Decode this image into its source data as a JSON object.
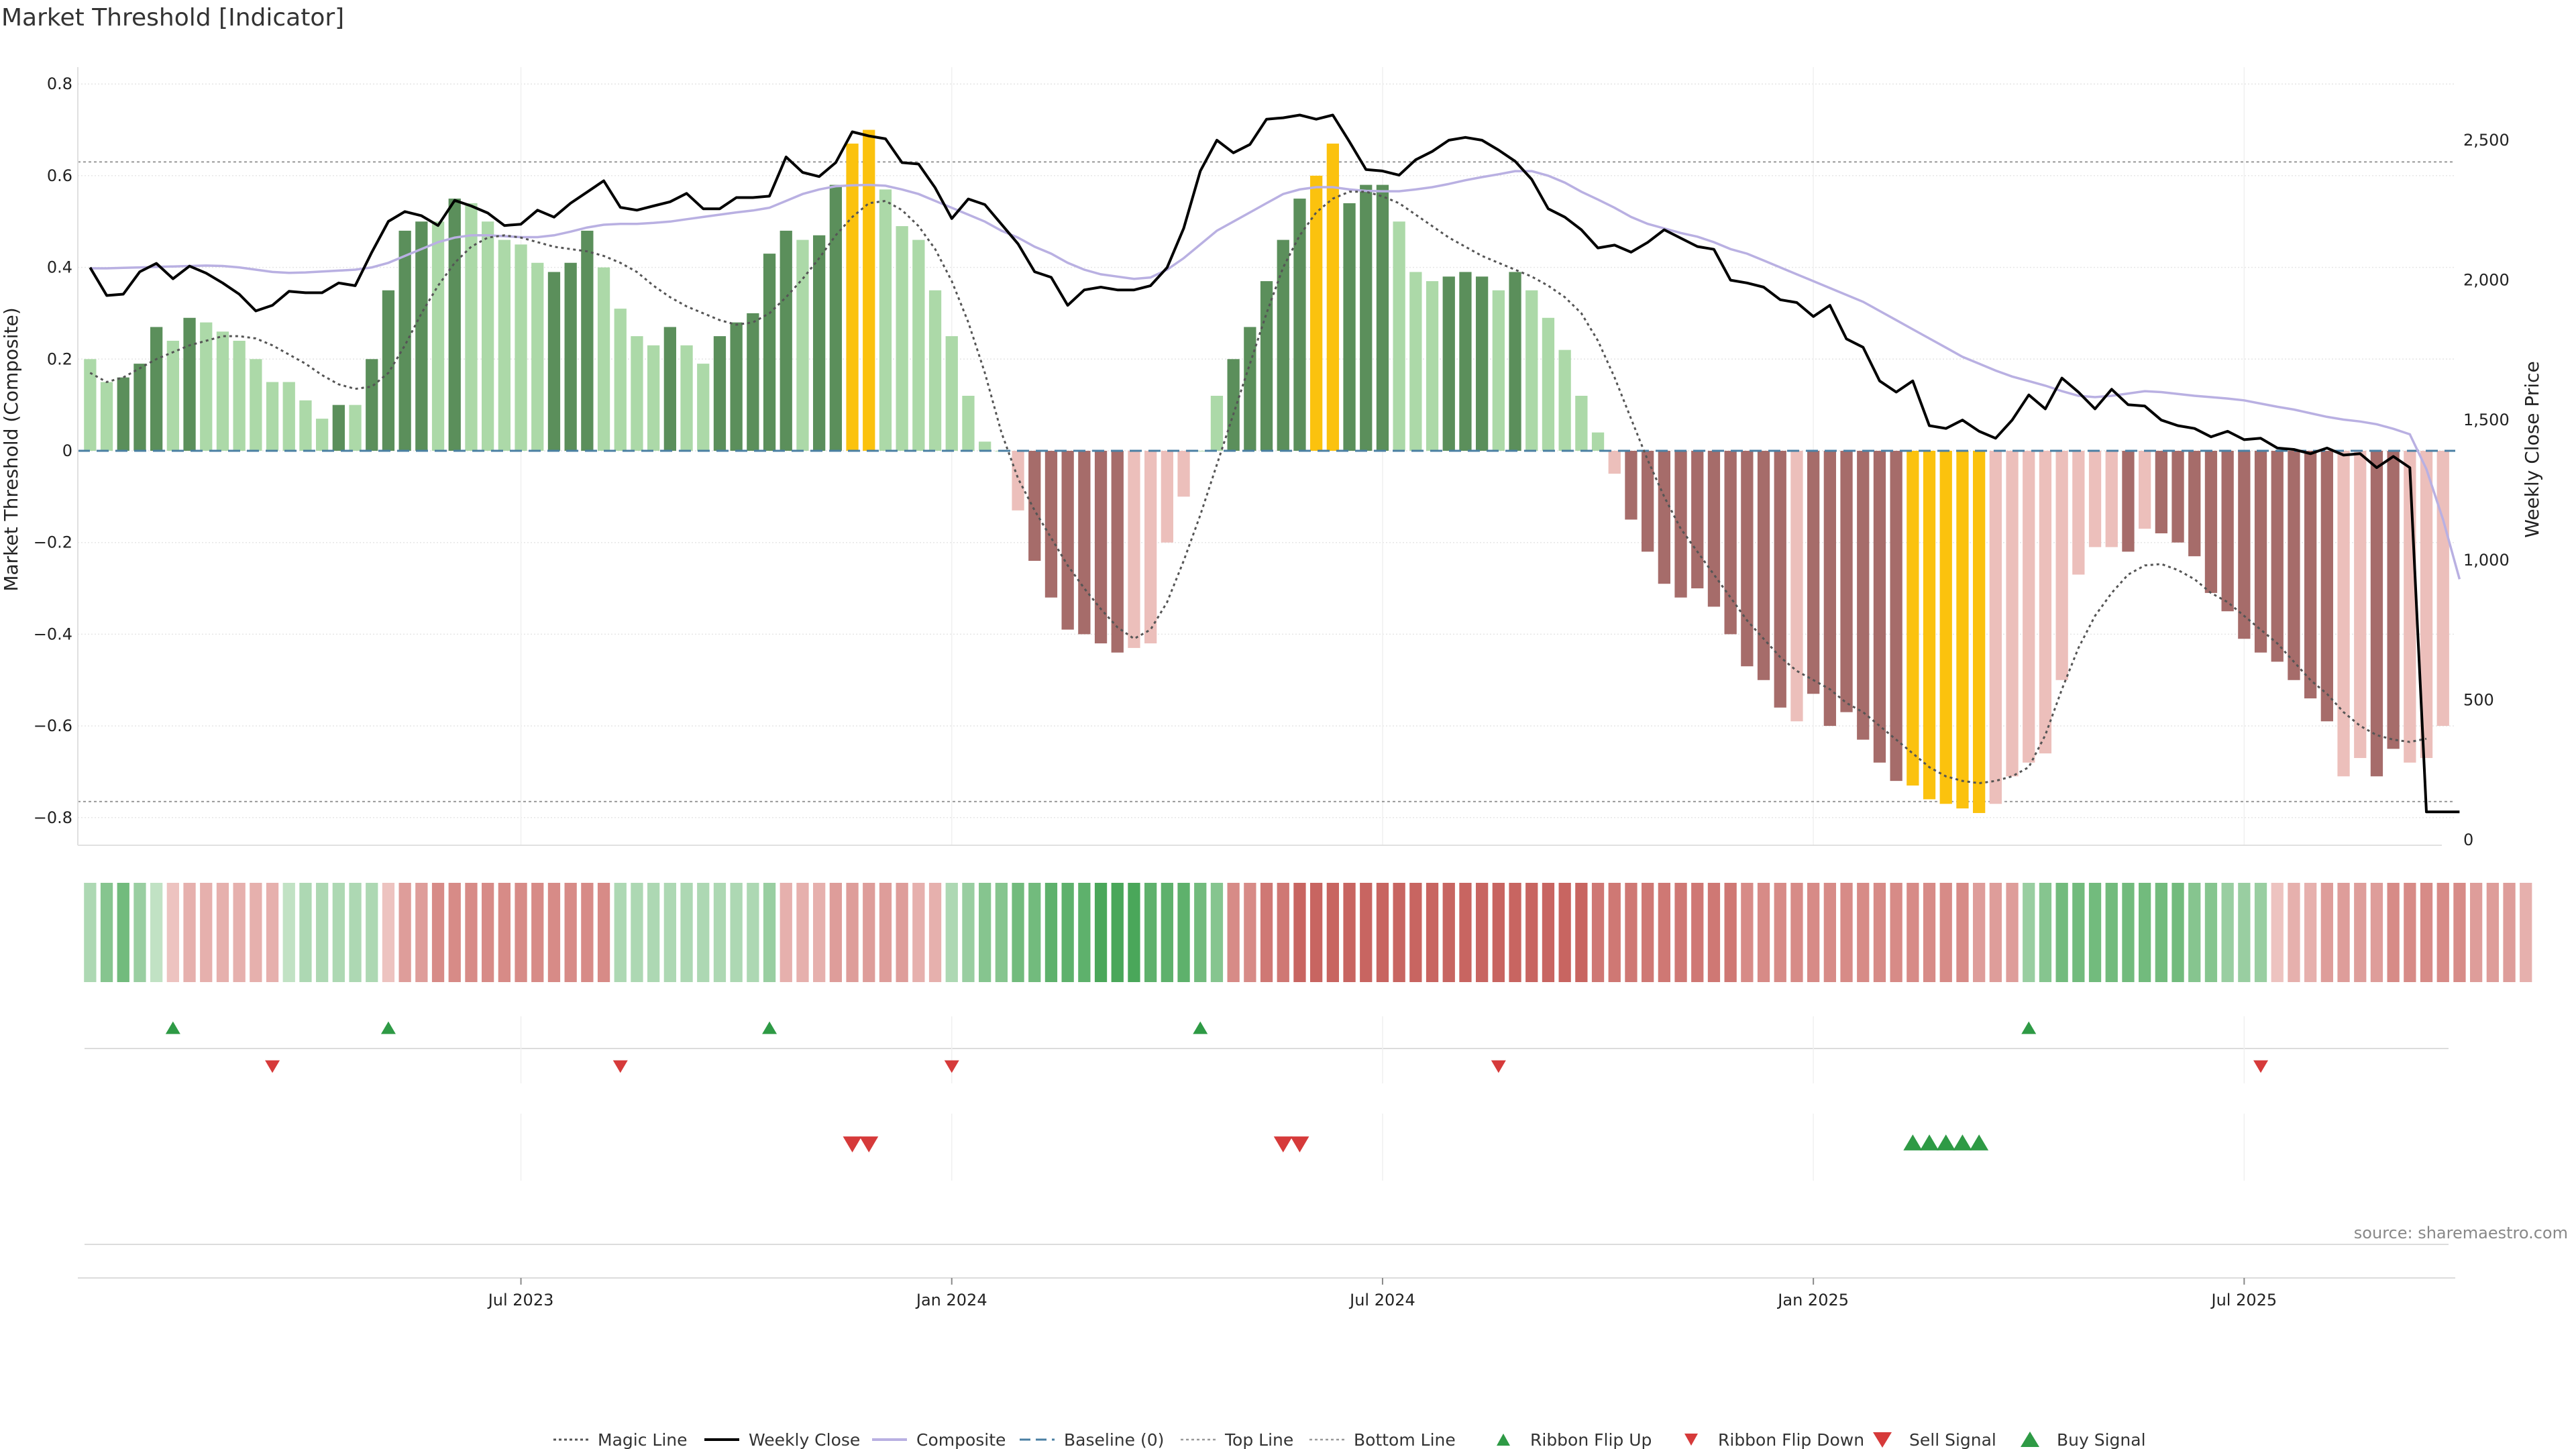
{
  "title": "Market Threshold [Indicator]",
  "source": "source: sharemaestro.com",
  "colors": {
    "bar_strong_up": "#5b8f5b",
    "bar_weak_up": "#acd9a8",
    "bar_strong_down": "#a66c6a",
    "bar_weak_down": "#ecbfbb",
    "bar_extreme": "#fbc20e",
    "weekly_close": "#000000",
    "composite": "#b9b0e2",
    "magic_line": "#555555",
    "baseline": "#4a7fa3",
    "threshold_line": "#999999",
    "signal_up": "#2e9a45",
    "signal_down": "#d63a3a"
  },
  "chart_data": {
    "type": "bar",
    "ylabel_left": "Market Threshold (Composite)",
    "ylabel_right": "Weekly Close Price",
    "ylim_left": [
      -0.85,
      0.85
    ],
    "ylim_right": [
      0,
      2650
    ],
    "yticks_left": [
      "0.8",
      "0.6",
      "0.4",
      "0.2",
      "0",
      "−0.2",
      "−0.4",
      "−0.6",
      "−0.8"
    ],
    "yticks_right": [
      "2,500",
      "2,000",
      "1,500",
      "1,000",
      "500",
      "0"
    ],
    "xticks": [
      "Jul 2023",
      "Jan 2024",
      "Jul 2024",
      "Jan 2025",
      "Jul 2025"
    ],
    "xtick_week_index": [
      26.5,
      52.5,
      78.5,
      104.5,
      130.5
    ],
    "week_count": 144,
    "top_line": 0.63,
    "bottom_line": -0.765,
    "threshold_values": [
      0.2,
      0.15,
      0.16,
      0.19,
      0.27,
      0.24,
      0.29,
      0.28,
      0.26,
      0.24,
      0.2,
      0.15,
      0.15,
      0.11,
      0.07,
      0.1,
      0.1,
      0.2,
      0.35,
      0.48,
      0.5,
      0.5,
      0.55,
      0.54,
      0.5,
      0.46,
      0.45,
      0.41,
      0.39,
      0.41,
      0.48,
      0.4,
      0.31,
      0.25,
      0.23,
      0.27,
      0.23,
      0.19,
      0.25,
      0.28,
      0.3,
      0.43,
      0.48,
      0.46,
      0.47,
      0.58,
      0.67,
      0.7,
      0.57,
      0.49,
      0.46,
      0.35,
      0.25,
      0.12,
      0.02,
      0,
      -0.13,
      -0.24,
      -0.32,
      -0.39,
      -0.4,
      -0.42,
      -0.44,
      -0.43,
      -0.42,
      -0.2,
      -0.1,
      0,
      0.12,
      0.2,
      0.27,
      0.37,
      0.46,
      0.55,
      0.6,
      0.67,
      0.54,
      0.58,
      0.58,
      0.5,
      0.39,
      0.37,
      0.38,
      0.39,
      0.38,
      0.35,
      0.39,
      0.35,
      0.29,
      0.22,
      0.12,
      0.04,
      -0.05,
      -0.15,
      -0.22,
      -0.29,
      -0.32,
      -0.3,
      -0.34,
      -0.4,
      -0.47,
      -0.5,
      -0.56,
      -0.59,
      -0.53,
      -0.6,
      -0.57,
      -0.63,
      -0.68,
      -0.72,
      -0.73,
      -0.76,
      -0.77,
      -0.78,
      -0.79,
      -0.77,
      -0.71,
      -0.68,
      -0.66,
      -0.5,
      -0.27,
      -0.21,
      -0.21,
      -0.22,
      -0.17,
      -0.18,
      -0.2,
      -0.23,
      -0.31,
      -0.35,
      -0.41,
      -0.44,
      -0.46,
      -0.5,
      -0.54,
      -0.59,
      -0.71,
      -0.67,
      -0.71,
      -0.65,
      -0.68,
      -0.67,
      -0.6
    ],
    "bar_classes": [
      "w",
      "w",
      "s",
      "s",
      "s",
      "w",
      "s",
      "w",
      "w",
      "w",
      "w",
      "w",
      "w",
      "w",
      "w",
      "s",
      "w",
      "s",
      "s",
      "s",
      "s",
      "w",
      "s",
      "w",
      "w",
      "w",
      "w",
      "w",
      "s",
      "s",
      "s",
      "w",
      "w",
      "w",
      "w",
      "s",
      "w",
      "w",
      "s",
      "s",
      "s",
      "s",
      "s",
      "w",
      "s",
      "s",
      "y",
      "y",
      "w",
      "w",
      "w",
      "w",
      "w",
      "w",
      "w",
      "w",
      "w",
      "s",
      "s",
      "s",
      "s",
      "s",
      "s",
      "w",
      "w",
      "w",
      "w",
      "w",
      "w",
      "s",
      "s",
      "s",
      "s",
      "s",
      "y",
      "y",
      "s",
      "s",
      "s",
      "w",
      "w",
      "w",
      "s",
      "s",
      "s",
      "w",
      "s",
      "w",
      "w",
      "w",
      "w",
      "w",
      "w",
      "s",
      "s",
      "s",
      "s",
      "s",
      "s",
      "s",
      "s",
      "s",
      "s",
      "w",
      "s",
      "s",
      "s",
      "s",
      "s",
      "s",
      "y",
      "y",
      "y",
      "y",
      "y",
      "w",
      "w",
      "w",
      "w",
      "w",
      "w",
      "w",
      "w",
      "s",
      "w",
      "s",
      "s",
      "s",
      "s",
      "s",
      "s",
      "s",
      "s",
      "s",
      "s",
      "s",
      "w",
      "w",
      "s",
      "s",
      "w",
      "w"
    ],
    "weekly_close": [
      2045,
      1945,
      1950,
      2030,
      2060,
      2005,
      2050,
      2025,
      1990,
      1950,
      1890,
      1910,
      1960,
      1955,
      1955,
      1990,
      1980,
      2100,
      2210,
      2245,
      2230,
      2195,
      2285,
      2265,
      2240,
      2195,
      2200,
      2250,
      2225,
      2275,
      2315,
      2355,
      2260,
      2250,
      2265,
      2280,
      2310,
      2255,
      2255,
      2295,
      2295,
      2300,
      2440,
      2385,
      2370,
      2420,
      2530,
      2515,
      2505,
      2420,
      2415,
      2330,
      2220,
      2290,
      2270,
      2200,
      2130,
      2030,
      2010,
      1910,
      1965,
      1975,
      1965,
      1965,
      1980,
      2045,
      2185,
      2390,
      2500,
      2455,
      2485,
      2575,
      2580,
      2590,
      2575,
      2590,
      2495,
      2395,
      2390,
      2375,
      2430,
      2460,
      2500,
      2510,
      2500,
      2465,
      2425,
      2360,
      2255,
      2225,
      2180,
      2115,
      2125,
      2100,
      2135,
      2180,
      2150,
      2120,
      2110,
      2000,
      1990,
      1975,
      1930,
      1920,
      1870,
      1910,
      1790,
      1760,
      1640,
      1600,
      1640,
      1480,
      1470,
      1500,
      1460,
      1435,
      1500,
      1590,
      1540,
      1650,
      1600,
      1540,
      1610,
      1555,
      1550,
      1500,
      1480,
      1470,
      1440,
      1460,
      1430,
      1435,
      1400,
      1395,
      1380,
      1400,
      1375,
      1380,
      1330,
      1370,
      1330,
      100,
      100,
      100
    ],
    "composite": [
      0.398,
      0.398,
      0.399,
      0.4,
      0.401,
      0.402,
      0.403,
      0.404,
      0.403,
      0.4,
      0.395,
      0.39,
      0.388,
      0.389,
      0.391,
      0.393,
      0.395,
      0.4,
      0.41,
      0.425,
      0.44,
      0.455,
      0.465,
      0.47,
      0.47,
      0.468,
      0.466,
      0.466,
      0.47,
      0.478,
      0.487,
      0.493,
      0.495,
      0.495,
      0.497,
      0.5,
      0.505,
      0.51,
      0.515,
      0.52,
      0.524,
      0.53,
      0.545,
      0.56,
      0.57,
      0.577,
      0.579,
      0.58,
      0.578,
      0.57,
      0.56,
      0.545,
      0.53,
      0.515,
      0.5,
      0.48,
      0.465,
      0.445,
      0.43,
      0.41,
      0.395,
      0.385,
      0.38,
      0.375,
      0.378,
      0.395,
      0.42,
      0.45,
      0.48,
      0.5,
      0.52,
      0.54,
      0.56,
      0.57,
      0.575,
      0.575,
      0.57,
      0.567,
      0.566,
      0.566,
      0.57,
      0.575,
      0.582,
      0.59,
      0.597,
      0.603,
      0.61,
      0.61,
      0.6,
      0.585,
      0.565,
      0.548,
      0.53,
      0.51,
      0.495,
      0.485,
      0.475,
      0.467,
      0.455,
      0.44,
      0.43,
      0.415,
      0.4,
      0.385,
      0.37,
      0.355,
      0.34,
      0.325,
      0.305,
      0.285,
      0.265,
      0.245,
      0.225,
      0.205,
      0.19,
      0.175,
      0.162,
      0.152,
      0.142,
      0.13,
      0.12,
      0.117,
      0.12,
      0.125,
      0.13,
      0.128,
      0.124,
      0.12,
      0.117,
      0.114,
      0.11,
      0.103,
      0.096,
      0.09,
      0.082,
      0.074,
      0.068,
      0.064,
      0.058,
      0.048,
      0.036,
      -0.04,
      -0.15,
      -0.28
    ],
    "magic_line": [
      0.17,
      0.15,
      0.16,
      0.18,
      0.2,
      0.215,
      0.23,
      0.24,
      0.25,
      0.25,
      0.245,
      0.23,
      0.21,
      0.19,
      0.165,
      0.145,
      0.135,
      0.14,
      0.17,
      0.23,
      0.3,
      0.36,
      0.41,
      0.445,
      0.465,
      0.47,
      0.465,
      0.455,
      0.445,
      0.44,
      0.435,
      0.425,
      0.41,
      0.39,
      0.36,
      0.335,
      0.315,
      0.3,
      0.285,
      0.275,
      0.28,
      0.3,
      0.335,
      0.375,
      0.42,
      0.47,
      0.51,
      0.54,
      0.545,
      0.525,
      0.49,
      0.44,
      0.37,
      0.28,
      0.17,
      0.04,
      -0.06,
      -0.13,
      -0.19,
      -0.25,
      -0.3,
      -0.345,
      -0.385,
      -0.41,
      -0.39,
      -0.33,
      -0.24,
      -0.14,
      -0.03,
      0.08,
      0.19,
      0.3,
      0.4,
      0.47,
      0.52,
      0.55,
      0.565,
      0.565,
      0.555,
      0.54,
      0.515,
      0.49,
      0.465,
      0.445,
      0.425,
      0.41,
      0.395,
      0.38,
      0.36,
      0.335,
      0.3,
      0.24,
      0.16,
      0.07,
      -0.02,
      -0.1,
      -0.17,
      -0.22,
      -0.27,
      -0.32,
      -0.37,
      -0.41,
      -0.45,
      -0.48,
      -0.5,
      -0.52,
      -0.55,
      -0.57,
      -0.6,
      -0.63,
      -0.66,
      -0.69,
      -0.71,
      -0.72,
      -0.725,
      -0.72,
      -0.71,
      -0.69,
      -0.62,
      -0.52,
      -0.43,
      -0.36,
      -0.31,
      -0.27,
      -0.25,
      -0.247,
      -0.26,
      -0.28,
      -0.31,
      -0.33,
      -0.36,
      -0.39,
      -0.42,
      -0.46,
      -0.5,
      -0.53,
      -0.57,
      -0.6,
      -0.62,
      -0.63,
      -0.635,
      -0.628
    ],
    "ribbon": [
      2,
      4,
      5,
      3,
      1,
      -1,
      -2,
      -2,
      -2,
      -2,
      -2,
      -2,
      1,
      2,
      2,
      2,
      2,
      2,
      -1,
      -3,
      -3,
      -4,
      -4,
      -4,
      -4,
      -4,
      -4,
      -4,
      -4,
      -4,
      -4,
      -4,
      2,
      2,
      2,
      2,
      2,
      2,
      2,
      2,
      2,
      3,
      -2,
      -2,
      -2,
      -3,
      -3,
      -3,
      -3,
      -3,
      -2,
      -2,
      2,
      3,
      4,
      4,
      5,
      5,
      6,
      6,
      6,
      7,
      7,
      7,
      6,
      6,
      6,
      5,
      4,
      -4,
      -4,
      -5,
      -5,
      -6,
      -6,
      -6,
      -6,
      -6,
      -6,
      -6,
      -6,
      -6,
      -6,
      -6,
      -6,
      -6,
      -6,
      -6,
      -6,
      -6,
      -6,
      -5,
      -5,
      -5,
      -5,
      -5,
      -5,
      -5,
      -5,
      -5,
      -4,
      -4,
      -4,
      -4,
      -4,
      -4,
      -4,
      -4,
      -4,
      -4,
      -4,
      -4,
      -4,
      -4,
      -3,
      -3,
      -3,
      3,
      4,
      5,
      5,
      5,
      5,
      5,
      5,
      5,
      5,
      4,
      4,
      3,
      3,
      3,
      -1,
      -2,
      -2,
      -3,
      -3,
      -3,
      -3,
      -4,
      -4,
      -4,
      -4,
      -4,
      -3,
      -3,
      -3,
      -2
    ],
    "ribbon_flip_up_weeks": [
      5,
      18,
      41,
      67,
      117
    ],
    "ribbon_flip_down_weeks": [
      11,
      32,
      52,
      85,
      131
    ],
    "sell_signal_weeks": [
      46,
      47,
      72,
      73
    ],
    "buy_signal_weeks": [
      110,
      111,
      112,
      113,
      114
    ],
    "legend": [
      {
        "label": "Magic Line",
        "style": "dotted-dark"
      },
      {
        "label": "Weekly Close",
        "style": "solid-black"
      },
      {
        "label": "Composite",
        "style": "solid-lavender"
      },
      {
        "label": "Baseline (0)",
        "style": "dashed-blue"
      },
      {
        "label": "Top Line",
        "style": "dotted-grey"
      },
      {
        "label": "Bottom Line",
        "style": "dotted-grey"
      },
      {
        "label": "Ribbon Flip Up",
        "style": "triangle-up-green"
      },
      {
        "label": "Ribbon Flip Down",
        "style": "triangle-down-red"
      },
      {
        "label": "Sell Signal",
        "style": "triangle-down-red-large"
      },
      {
        "label": "Buy Signal",
        "style": "triangle-up-green-large"
      }
    ]
  }
}
